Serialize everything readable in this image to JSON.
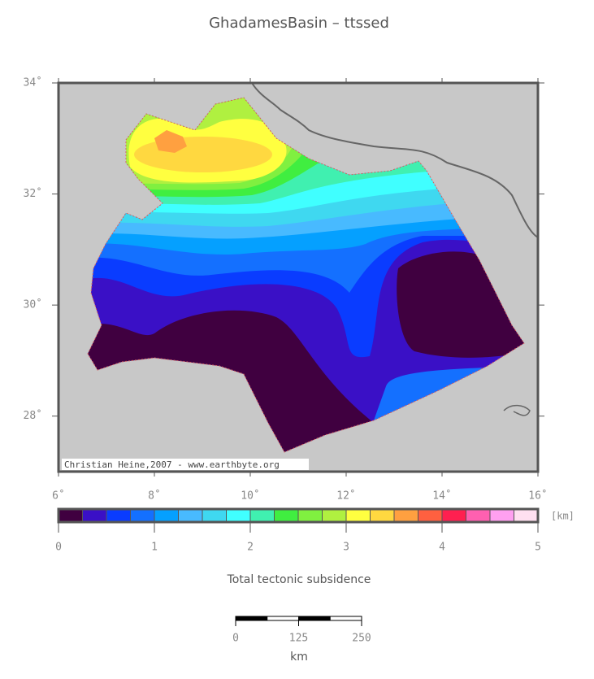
{
  "map": {
    "title": "GhadamesBasin – ttssed",
    "credit": "Christian Heine,2007 - www.earthbyte.org",
    "lonlim": [
      6,
      16
    ],
    "latlim": [
      27,
      34
    ],
    "lon_ticks": [
      {
        "value": 6,
        "label": "6˚"
      },
      {
        "value": 8,
        "label": "8˚"
      },
      {
        "value": 10,
        "label": "10˚"
      },
      {
        "value": 12,
        "label": "12˚"
      },
      {
        "value": 14,
        "label": "14˚"
      },
      {
        "value": 16,
        "label": "16˚"
      }
    ],
    "lat_ticks": [
      {
        "value": 28,
        "label": "28˚"
      },
      {
        "value": 30,
        "label": "30˚"
      },
      {
        "value": 32,
        "label": "32˚"
      },
      {
        "value": 34,
        "label": "34˚"
      }
    ],
    "colorbar": {
      "lim": [
        0,
        5
      ],
      "ticks": [
        0,
        1,
        2,
        3,
        4,
        5
      ],
      "unit": "[km]",
      "label": "Total tectonic subsidence",
      "colors": [
        "#400040",
        "#3a10c6",
        "#0a3cff",
        "#1470ff",
        "#05a0ff",
        "#48baff",
        "#3fd8f0",
        "#40ffff",
        "#40f0b0",
        "#40ee40",
        "#80f040",
        "#b0f040",
        "#ffff40",
        "#ffd840",
        "#ffa040",
        "#ff6040",
        "#ff2050",
        "#ff60b0",
        "#ffa0f0",
        "#ffe0f0"
      ]
    },
    "scale_bar": {
      "ticks": [
        0,
        125,
        250
      ],
      "unit": "km"
    }
  }
}
